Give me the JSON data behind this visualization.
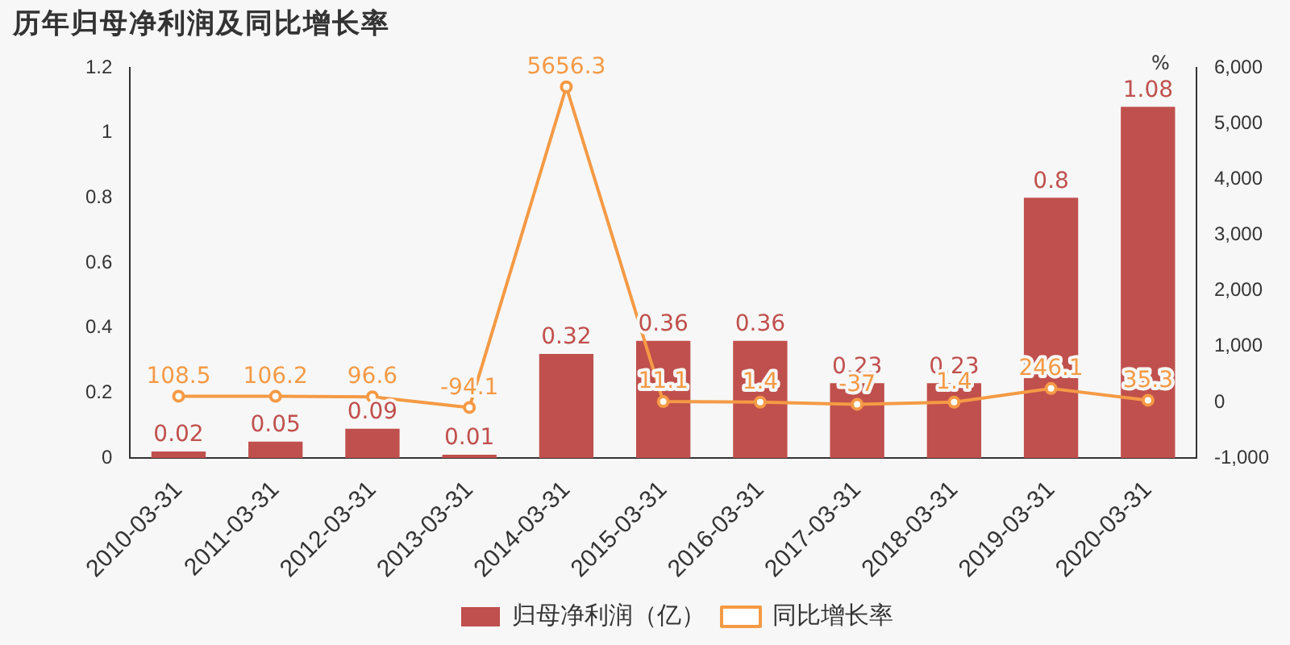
{
  "chart_data": {
    "type": "bar",
    "title": "历年归母净利润及同比增长率",
    "y2label": "%",
    "categories": [
      "2010-03-31",
      "2011-03-31",
      "2012-03-31",
      "2013-03-31",
      "2014-03-31",
      "2015-03-31",
      "2016-03-31",
      "2017-03-31",
      "2018-03-31",
      "2019-03-31",
      "2020-03-31"
    ],
    "series": [
      {
        "name": "归母净利润（亿）",
        "color": "#c0504d",
        "values": [
          0.02,
          0.05,
          0.09,
          0.01,
          0.32,
          0.36,
          0.36,
          0.23,
          0.23,
          0.8,
          1.08
        ]
      },
      {
        "name": "同比增长率",
        "type": "line",
        "axis": "y2",
        "color": "#f59a45",
        "values": [
          108.5,
          106.2,
          96.6,
          -94.1,
          5656.3,
          11.1,
          1.4,
          -37,
          1.4,
          246.1,
          35.3
        ]
      }
    ],
    "ylim": [
      0,
      1.2
    ],
    "yticks": [
      0,
      0.2,
      0.4,
      0.6,
      0.8,
      1,
      1.2
    ],
    "y2lim": [
      -1000,
      6000
    ],
    "y2ticks": [
      {
        "value": -1000,
        "label": "-1,000"
      },
      0,
      {
        "value": 1000,
        "label": "1,000"
      },
      {
        "value": 2000,
        "label": "2,000"
      },
      {
        "value": 3000,
        "label": "3,000"
      },
      {
        "value": 4000,
        "label": "4,000"
      },
      {
        "value": 5000,
        "label": "5,000"
      },
      {
        "value": 6000,
        "label": "6,000"
      }
    ],
    "data_labels": true,
    "grid": false,
    "legend": "bottom",
    "marker": "circle",
    "line_style": "solid"
  }
}
